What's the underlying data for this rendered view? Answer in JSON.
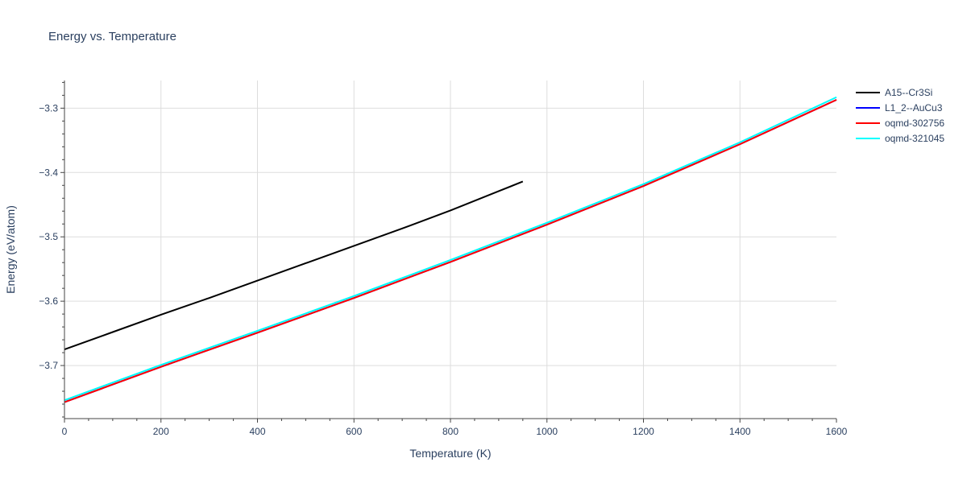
{
  "chart_data": {
    "type": "line",
    "title": "Energy vs. Temperature",
    "xlabel": "Temperature (K)",
    "ylabel": "Energy (eV/atom)",
    "xlim": [
      0,
      1600
    ],
    "ylim": [
      -3.7825,
      -3.257
    ],
    "x_ticks": [
      0,
      200,
      400,
      600,
      800,
      1000,
      1200,
      1400,
      1600
    ],
    "y_ticks": [
      -3.3,
      -3.4,
      -3.5,
      -3.6,
      -3.7
    ],
    "y_tick_labels": [
      "−3.3",
      "−3.4",
      "−3.5",
      "−3.6",
      "−3.7"
    ],
    "grid": true,
    "legend_position": "top-right",
    "series": [
      {
        "name": "A15--Cr3Si",
        "color": "#000000",
        "x": [
          0,
          100,
          200,
          300,
          400,
          500,
          600,
          700,
          800,
          900,
          950
        ],
        "y": [
          -3.675,
          -3.648,
          -3.621,
          -3.595,
          -3.568,
          -3.541,
          -3.514,
          -3.487,
          -3.459,
          -3.429,
          -3.414
        ]
      },
      {
        "name": "L1_2--AuCu3",
        "color": "#0000ff",
        "x": [
          0,
          200,
          400,
          600,
          800,
          1000,
          1200,
          1400,
          1600
        ],
        "y": [
          -3.757,
          -3.702,
          -3.649,
          -3.595,
          -3.539,
          -3.481,
          -3.421,
          -3.356,
          -3.287
        ]
      },
      {
        "name": "oqmd-302756",
        "color": "#ff0000",
        "x": [
          0,
          200,
          400,
          600,
          800,
          1000,
          1200,
          1400,
          1600
        ],
        "y": [
          -3.757,
          -3.702,
          -3.649,
          -3.595,
          -3.539,
          -3.481,
          -3.421,
          -3.356,
          -3.287
        ]
      },
      {
        "name": "oqmd-321045",
        "color": "#00ffff",
        "x": [
          0,
          200,
          400,
          600,
          800,
          1000,
          1200,
          1400,
          1600
        ],
        "y": [
          -3.754,
          -3.699,
          -3.646,
          -3.592,
          -3.536,
          -3.478,
          -3.418,
          -3.353,
          -3.283
        ]
      }
    ]
  }
}
